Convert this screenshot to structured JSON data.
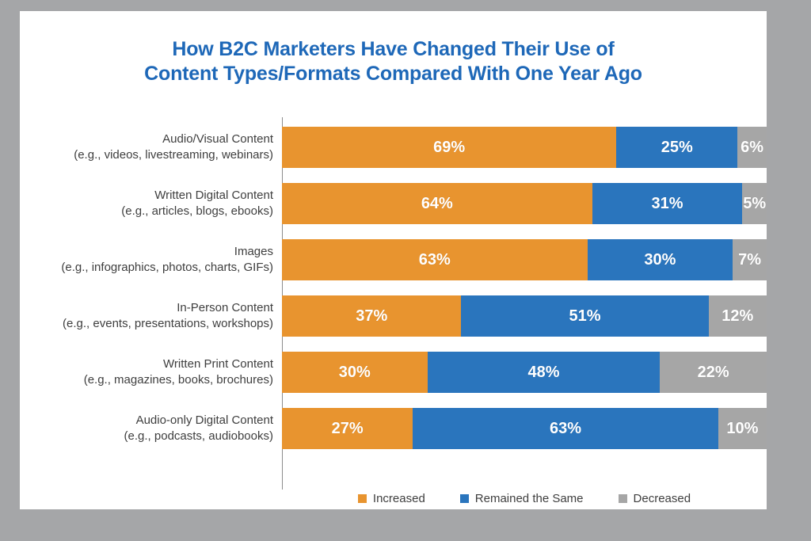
{
  "title": {
    "line1": "How B2C Marketers Have Changed Their Use of",
    "line2": "Content Types/Formats Compared With One Year Ago"
  },
  "colors": {
    "increased": "#E8942F",
    "remained_the_same": "#2A75BD",
    "decreased": "#A6A6A6",
    "title_text": "#1E68B8",
    "body_text": "#3E3E3E",
    "frame": "#A5A6A8",
    "axis_line": "#8C8C8C",
    "bar_label_text": "#FFFFFF"
  },
  "legend": {
    "items": [
      {
        "label": "Increased",
        "key": "increased"
      },
      {
        "label": "Remained the Same",
        "key": "remained_the_same"
      },
      {
        "label": "Decreased",
        "key": "decreased"
      }
    ]
  },
  "chart_data": {
    "type": "bar",
    "subtype": "horizontal-stacked",
    "title": "How B2C Marketers Have Changed Their Use of Content Types/Formats Compared With One Year Ago",
    "categories": [
      "Audio/Visual Content",
      "Written Digital Content",
      "Images",
      "In-Person Content",
      "Written Print Content",
      "Audio-only Digital Content"
    ],
    "category_examples": [
      "(e.g., videos, livestreaming, webinars)",
      "(e.g., articles, blogs, ebooks)",
      "(e.g., infographics, photos, charts, GIFs)",
      "(e.g., events, presentations, workshops)",
      "(e.g., magazines, books, brochures)",
      "(e.g., podcasts, audiobooks)"
    ],
    "series": [
      {
        "name": "Increased",
        "color": "#E8942F",
        "values": [
          69,
          64,
          63,
          37,
          30,
          27
        ]
      },
      {
        "name": "Remained the Same",
        "color": "#2A75BD",
        "values": [
          25,
          31,
          30,
          51,
          48,
          63
        ]
      },
      {
        "name": "Decreased",
        "color": "#A6A6A6",
        "values": [
          6,
          5,
          7,
          12,
          22,
          10
        ]
      }
    ],
    "value_suffix": "%",
    "xlim": [
      0,
      100
    ],
    "grid": false,
    "legend_position": "bottom"
  }
}
